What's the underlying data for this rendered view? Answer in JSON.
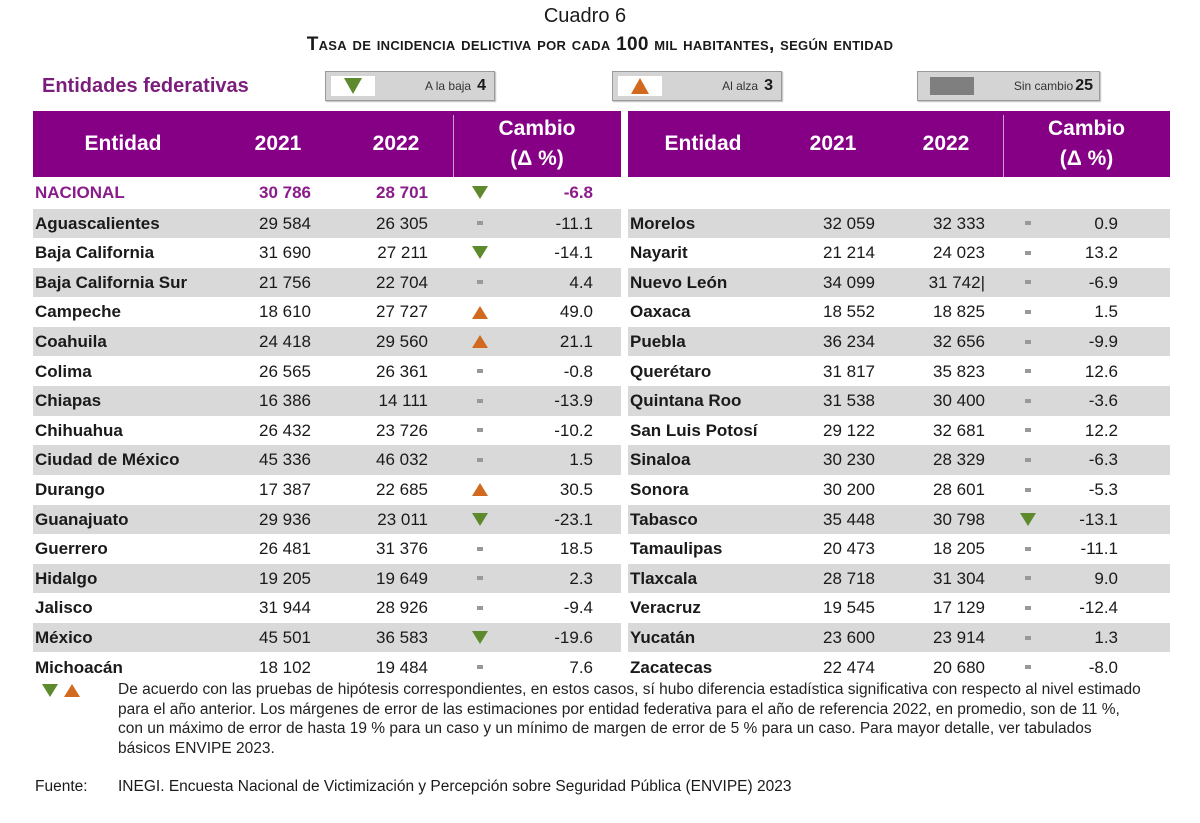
{
  "cuadro": "Cuadro 6",
  "title": "Tasa de incidencia delictiva por cada 100 mil habitantes, según entidad",
  "subheading": "Entidades federativas",
  "legend": [
    {
      "icon": "down-triangle-icon",
      "label": "A la baja",
      "count": "4",
      "color": "#5e8a2e"
    },
    {
      "icon": "up-triangle-icon",
      "label": "Al alza",
      "count": "3",
      "color": "#d2691e"
    },
    {
      "icon": "gray-bar-icon",
      "label": "Sin cambio",
      "count": "25",
      "color": "#7f7f7f"
    }
  ],
  "headers": {
    "entidad": "Entidad",
    "y2021": "2021",
    "y2022": "2022",
    "cambio": "Cambio",
    "delta": "(Δ %)"
  },
  "nacional": {
    "name": "NACIONAL",
    "v2021": "30 786",
    "v2022": "28 701",
    "mark": "down",
    "change": "-6.8"
  },
  "left": [
    {
      "name": "Aguascalientes",
      "v2021": "29 584",
      "v2022": "26 305",
      "mark": "none",
      "change": "-11.1"
    },
    {
      "name": "Baja California",
      "v2021": "31 690",
      "v2022": "27 211",
      "mark": "down",
      "change": "-14.1"
    },
    {
      "name": "Baja California Sur",
      "v2021": "21 756",
      "v2022": "22 704",
      "mark": "none",
      "change": "4.4"
    },
    {
      "name": "Campeche",
      "v2021": "18 610",
      "v2022": "27 727",
      "mark": "up",
      "change": "49.0"
    },
    {
      "name": "Coahuila",
      "v2021": "24 418",
      "v2022": "29 560",
      "mark": "up",
      "change": "21.1"
    },
    {
      "name": "Colima",
      "v2021": "26 565",
      "v2022": "26 361",
      "mark": "none",
      "change": "-0.8"
    },
    {
      "name": "Chiapas",
      "v2021": "16 386",
      "v2022": "14 111",
      "mark": "none",
      "change": "-13.9"
    },
    {
      "name": "Chihuahua",
      "v2021": "26 432",
      "v2022": "23 726",
      "mark": "none",
      "change": "-10.2"
    },
    {
      "name": "Ciudad de México",
      "v2021": "45 336",
      "v2022": "46 032",
      "mark": "none",
      "change": "1.5"
    },
    {
      "name": "Durango",
      "v2021": "17 387",
      "v2022": "22 685",
      "mark": "up",
      "change": "30.5"
    },
    {
      "name": "Guanajuato",
      "v2021": "29 936",
      "v2022": "23 011",
      "mark": "down",
      "change": "-23.1"
    },
    {
      "name": "Guerrero",
      "v2021": "26 481",
      "v2022": "31 376",
      "mark": "none",
      "change": "18.5"
    },
    {
      "name": "Hidalgo",
      "v2021": "19 205",
      "v2022": "19 649",
      "mark": "none",
      "change": "2.3"
    },
    {
      "name": "Jalisco",
      "v2021": "31 944",
      "v2022": "28 926",
      "mark": "none",
      "change": "-9.4"
    },
    {
      "name": "México",
      "v2021": "45 501",
      "v2022": "36 583",
      "mark": "down",
      "change": "-19.6"
    },
    {
      "name": "Michoacán",
      "v2021": "18 102",
      "v2022": "19 484",
      "mark": "none",
      "change": "7.6"
    }
  ],
  "right": [
    {
      "name": "Morelos",
      "v2021": "32 059",
      "v2022": "32 333",
      "mark": "none",
      "change": "0.9"
    },
    {
      "name": "Nayarit",
      "v2021": "21 214",
      "v2022": "24 023",
      "mark": "none",
      "change": "13.2"
    },
    {
      "name": "Nuevo León",
      "v2021": "34 099",
      "v2022": "31 742|",
      "mark": "none",
      "change": "-6.9"
    },
    {
      "name": "Oaxaca",
      "v2021": "18 552",
      "v2022": "18 825",
      "mark": "none",
      "change": "1.5"
    },
    {
      "name": "Puebla",
      "v2021": "36 234",
      "v2022": "32 656",
      "mark": "none",
      "change": "-9.9"
    },
    {
      "name": "Querétaro",
      "v2021": "31 817",
      "v2022": "35 823",
      "mark": "none",
      "change": "12.6"
    },
    {
      "name": "Quintana Roo",
      "v2021": "31 538",
      "v2022": "30 400",
      "mark": "none",
      "change": "-3.6"
    },
    {
      "name": "San Luis Potosí",
      "v2021": "29 122",
      "v2022": "32 681",
      "mark": "none",
      "change": "12.2"
    },
    {
      "name": "Sinaloa",
      "v2021": "30 230",
      "v2022": "28 329",
      "mark": "none",
      "change": "-6.3"
    },
    {
      "name": "Sonora",
      "v2021": "30 200",
      "v2022": "28 601",
      "mark": "none",
      "change": "-5.3"
    },
    {
      "name": "Tabasco",
      "v2021": "35 448",
      "v2022": "30 798",
      "mark": "down",
      "change": "-13.1"
    },
    {
      "name": "Tamaulipas",
      "v2021": "20 473",
      "v2022": "18 205",
      "mark": "none",
      "change": "-11.1"
    },
    {
      "name": "Tlaxcala",
      "v2021": "28 718",
      "v2022": "31 304",
      "mark": "none",
      "change": "9.0"
    },
    {
      "name": "Veracruz",
      "v2021": "19 545",
      "v2022": "17 129",
      "mark": "none",
      "change": "-12.4"
    },
    {
      "name": "Yucatán",
      "v2021": "23 600",
      "v2022": "23 914",
      "mark": "none",
      "change": "1.3"
    },
    {
      "name": "Zacatecas",
      "v2021": "22 474",
      "v2022": "20 680",
      "mark": "none",
      "change": "-8.0"
    }
  ],
  "footnote": "De acuerdo con las pruebas de hipótesis correspondientes, en estos casos, sí hubo diferencia estadística significativa con respecto al nivel estimado para el año anterior. Los márgenes de error de las estimaciones por entidad federativa para el año de referencia 2022, en promedio, son de 11 %, con un máximo de error de hasta 19 % para un caso y un mínimo de margen de error de 5 % para un caso. Para mayor detalle, ver tabulados básicos ENVIPE 2023.",
  "source_label": "Fuente:",
  "source": "INEGI. Encuesta Nacional de Victimización y Percepción sobre Seguridad Pública (ENVIPE) 2023"
}
